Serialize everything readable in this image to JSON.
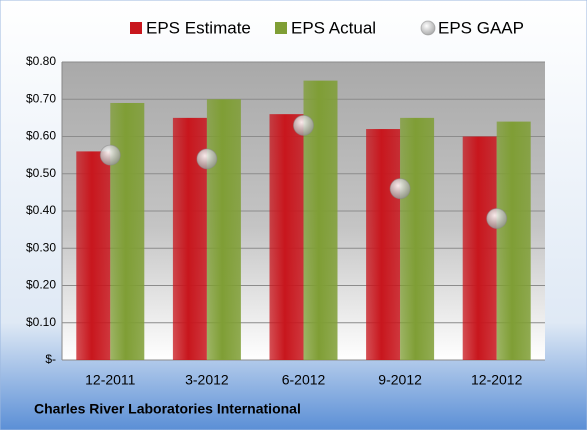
{
  "chart_data": {
    "type": "bar",
    "title": "Charles River Laboratories International",
    "categories": [
      "12-2011",
      "3-2012",
      "6-2012",
      "9-2012",
      "12-2012"
    ],
    "series": [
      {
        "name": "EPS Estimate",
        "type": "bar",
        "color": "#c8161d",
        "values": [
          0.56,
          0.65,
          0.66,
          0.62,
          0.6
        ]
      },
      {
        "name": "EPS Actual",
        "type": "bar",
        "color": "#7f9e35",
        "values": [
          0.69,
          0.7,
          0.75,
          0.65,
          0.64
        ]
      },
      {
        "name": "EPS GAAP",
        "type": "scatter",
        "color": "#9a9a9a",
        "values": [
          0.55,
          0.54,
          0.63,
          0.46,
          0.38
        ]
      }
    ],
    "ylim": [
      0,
      0.8
    ],
    "yticks": [
      {
        "value": 0,
        "label": "$-"
      },
      {
        "value": 0.1,
        "label": "$0.10"
      },
      {
        "value": 0.2,
        "label": "$0.20"
      },
      {
        "value": 0.3,
        "label": "$0.30"
      },
      {
        "value": 0.4,
        "label": "$0.40"
      },
      {
        "value": 0.5,
        "label": "$0.50"
      },
      {
        "value": 0.6,
        "label": "$0.60"
      },
      {
        "value": 0.7,
        "label": "$0.70"
      },
      {
        "value": 0.8,
        "label": "$0.80"
      }
    ],
    "grid": true,
    "legend": "top"
  }
}
